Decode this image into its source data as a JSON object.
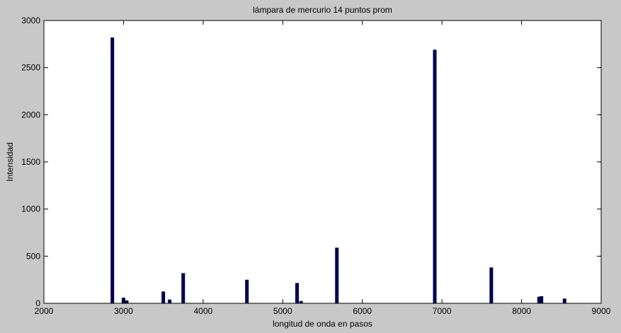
{
  "chart_data": {
    "type": "bar",
    "title": "lámpara de mercurio 14 puntos prom",
    "xlabel": "longitud de onda en pasos",
    "ylabel": "Intensidad",
    "xlim": [
      2000,
      9000
    ],
    "ylim": [
      0,
      3000
    ],
    "xticks": [
      2000,
      3000,
      4000,
      5000,
      6000,
      7000,
      8000,
      9000
    ],
    "yticks": [
      0,
      500,
      1000,
      1500,
      2000,
      2500,
      3000
    ],
    "grid": false,
    "bar_color": "#000050",
    "points": [
      {
        "x": 2860,
        "y": 2820
      },
      {
        "x": 3000,
        "y": 60
      },
      {
        "x": 3040,
        "y": 30
      },
      {
        "x": 3500,
        "y": 125
      },
      {
        "x": 3580,
        "y": 40
      },
      {
        "x": 3750,
        "y": 320
      },
      {
        "x": 4550,
        "y": 250
      },
      {
        "x": 5180,
        "y": 215
      },
      {
        "x": 5230,
        "y": 25
      },
      {
        "x": 5680,
        "y": 590
      },
      {
        "x": 6910,
        "y": 2690
      },
      {
        "x": 7620,
        "y": 380
      },
      {
        "x": 8220,
        "y": 70
      },
      {
        "x": 8250,
        "y": 75
      },
      {
        "x": 8540,
        "y": 50
      }
    ]
  }
}
